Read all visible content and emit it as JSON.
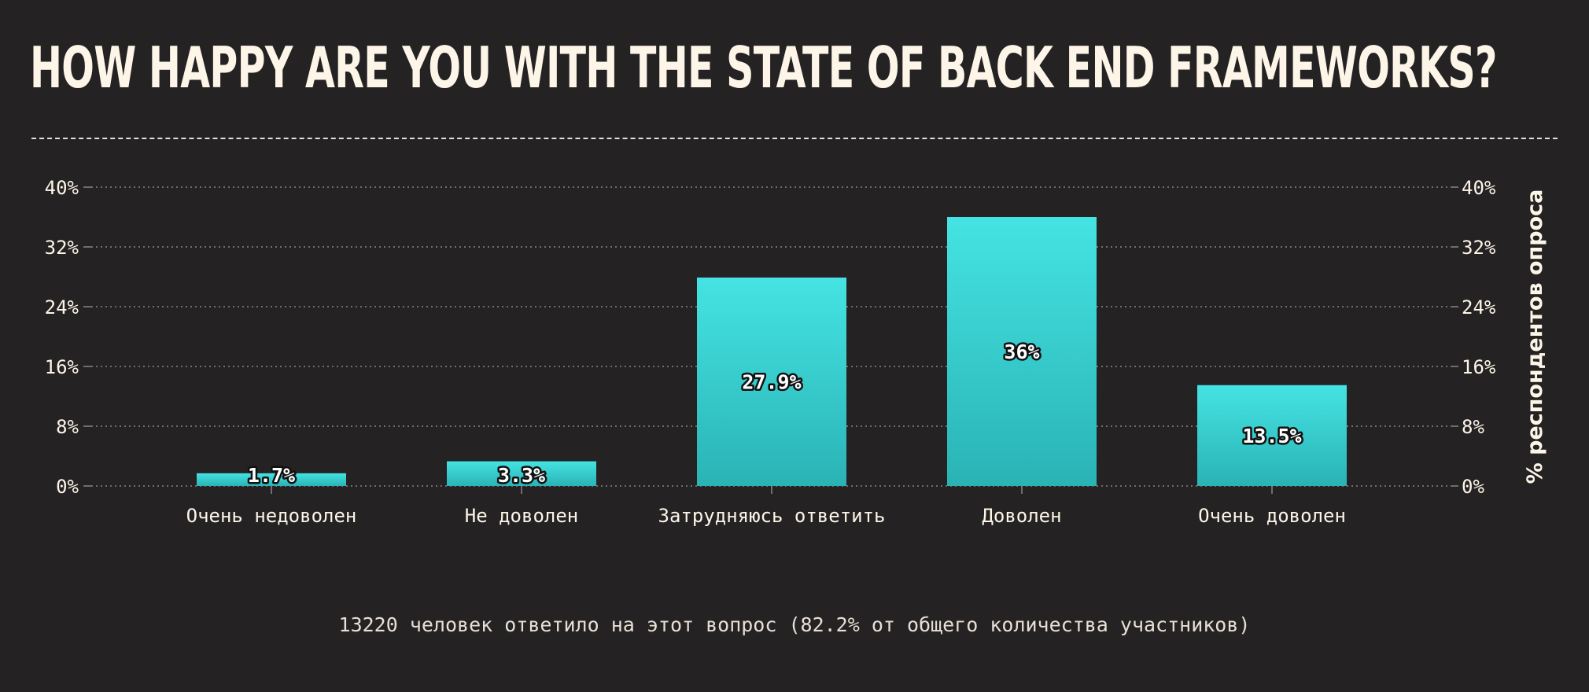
{
  "title": "HOW HAPPY ARE YOU WITH THE STATE OF BACK END FRAMEWORKS?",
  "footnote": "13220 человек ответило на этот вопрос (82.2% от общего количества участников)",
  "colors": {
    "background": "#252224",
    "text": "#fdf6e8",
    "bar_top": "#45e3e3",
    "bar_bottom": "#2ab3b5",
    "grid": "#8a8588"
  },
  "chart_data": {
    "type": "bar",
    "categories": [
      "Очень недоволен",
      "Не доволен",
      "Затрудняюсь ответить",
      "Доволен",
      "Очень доволен"
    ],
    "values": [
      1.7,
      3.3,
      27.9,
      36,
      13.5
    ],
    "data_labels": [
      "1.7%",
      "3.3%",
      "27.9%",
      "36%",
      "13.5%"
    ],
    "y_ticks": [
      0,
      8,
      16,
      24,
      32,
      40
    ],
    "y_tick_labels": [
      "0%",
      "8%",
      "16%",
      "24%",
      "32%",
      "40%"
    ],
    "ylim": [
      0,
      40
    ],
    "ylabel": "% респондентов опроса",
    "xlabel": "",
    "grid": true
  }
}
